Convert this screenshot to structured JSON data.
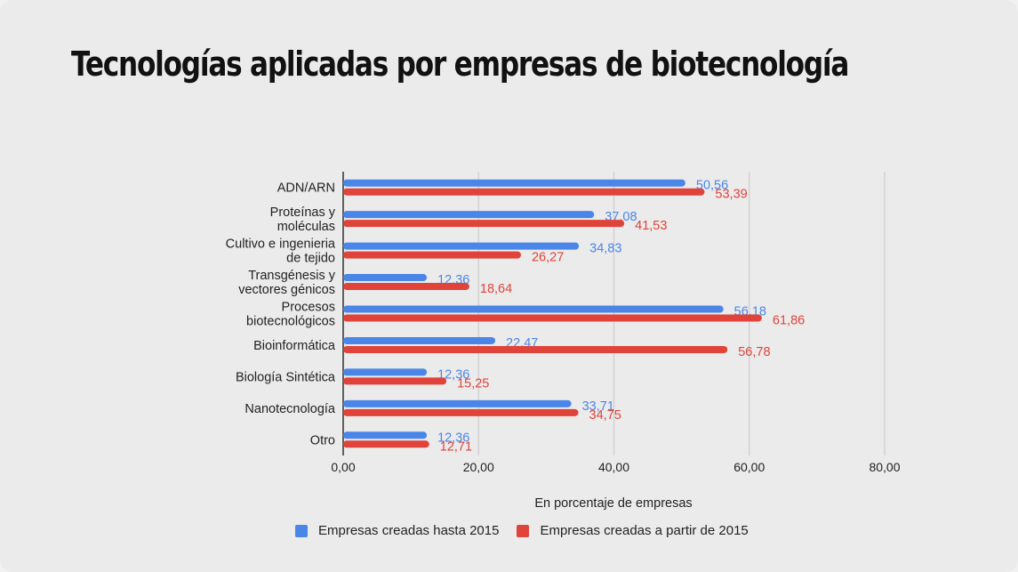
{
  "title": "Tecnologías aplicadas por empresas de biotecnología",
  "colors": {
    "series1": "#4a86e8",
    "series2": "#e0433a",
    "grid": "#cccccc",
    "axis": "#333333"
  },
  "chart_data": {
    "type": "bar",
    "orientation": "horizontal",
    "categories": [
      [
        "ADN/ARN"
      ],
      [
        "Proteínas y",
        "moléculas"
      ],
      [
        "Cultivo e ingenieria",
        "de tejido"
      ],
      [
        "Transgénesis y",
        "vectores génicos"
      ],
      [
        "Procesos",
        "biotecnológicos"
      ],
      [
        "Bioinformática"
      ],
      [
        "Biología Sintética"
      ],
      [
        "Nanotecnología"
      ],
      [
        "Otro"
      ]
    ],
    "series": [
      {
        "name": "Empresas creadas hasta 2015",
        "values": [
          50.56,
          37.08,
          34.83,
          12.36,
          56.18,
          22.47,
          12.36,
          33.71,
          12.36
        ],
        "labels": [
          "50,56",
          "37,08",
          "34,83",
          "12,36",
          "56,18",
          "22,47",
          "12,36",
          "33,71",
          "12,36"
        ]
      },
      {
        "name": "Empresas creadas a partir de 2015",
        "values": [
          53.39,
          41.53,
          26.27,
          18.64,
          61.86,
          56.78,
          15.25,
          34.75,
          12.71
        ],
        "labels": [
          "53,39",
          "41,53",
          "26,27",
          "18,64",
          "61,86",
          "56,78",
          "15,25",
          "34,75",
          "12,71"
        ]
      }
    ],
    "xlim": [
      0,
      80
    ],
    "xticks": [
      {
        "value": 0,
        "label": "0,00"
      },
      {
        "value": 20,
        "label": "20,00"
      },
      {
        "value": 40,
        "label": "40,00"
      },
      {
        "value": 60,
        "label": "60,00"
      },
      {
        "value": 80,
        "label": "80,00"
      }
    ],
    "xlabel": "En porcentaje de empresas",
    "ylabel": "",
    "grid": true,
    "legend_position": "bottom"
  }
}
